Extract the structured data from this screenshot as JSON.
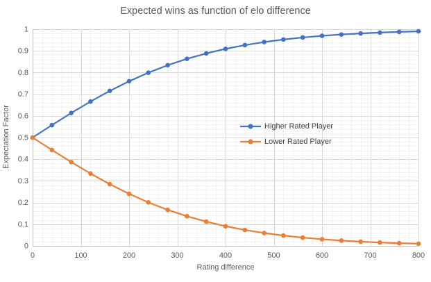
{
  "chart_data": {
    "type": "line",
    "title": "Expected wins as function of elo difference",
    "xlabel": "Rating difference",
    "ylabel": "Expectation Factor",
    "xlim": [
      0,
      800
    ],
    "ylim": [
      0,
      1
    ],
    "x": [
      0,
      40,
      80,
      120,
      160,
      200,
      240,
      280,
      320,
      360,
      400,
      440,
      480,
      520,
      560,
      600,
      640,
      680,
      720,
      760,
      800
    ],
    "series": [
      {
        "name": "Higher Rated Player",
        "color": "#4472C4",
        "values": [
          0.5,
          0.5573,
          0.6131,
          0.6661,
          0.7153,
          0.7597,
          0.7992,
          0.8337,
          0.8632,
          0.8882,
          0.9091,
          0.9264,
          0.9406,
          0.9523,
          0.9617,
          0.9693,
          0.9755,
          0.9804,
          0.9844,
          0.9876,
          0.9901
        ]
      },
      {
        "name": "Lower Rated Player",
        "color": "#ED7D31",
        "values": [
          0.5,
          0.4427,
          0.3869,
          0.3339,
          0.2847,
          0.2403,
          0.2008,
          0.1663,
          0.1368,
          0.1118,
          0.0909,
          0.0736,
          0.0594,
          0.0477,
          0.0383,
          0.0307,
          0.0245,
          0.0196,
          0.0156,
          0.0124,
          0.0099
        ]
      }
    ],
    "x_axis": {
      "tick_values": [
        0,
        100,
        200,
        300,
        400,
        500,
        600,
        700,
        800
      ],
      "tick_labels": [
        "0",
        "100",
        "200",
        "300",
        "400",
        "500",
        "600",
        "700",
        "800"
      ],
      "minor_step": 20
    },
    "y_axis": {
      "tick_values": [
        0,
        0.1,
        0.2,
        0.3,
        0.4,
        0.5,
        0.6,
        0.7,
        0.8,
        0.9,
        1
      ],
      "tick_labels": [
        "0",
        "0.1",
        "0.2",
        "0.3",
        "0.4",
        "0.5",
        "0.6",
        "0.7",
        "0.8",
        "0.9",
        "1"
      ],
      "minor_step": 0.02
    },
    "grid": {
      "major": true,
      "minor": true
    },
    "legend": {
      "position": "center-right-inside",
      "marker": "circle-on-line"
    },
    "colors": {
      "title_text": "#595959",
      "axis_text": "#595959",
      "legend_text": "#404040",
      "major_grid": "#D9D9D9",
      "minor_grid": "#F2F2F2",
      "axis_line": "#BFBFBF",
      "background": "#FFFFFF"
    }
  }
}
